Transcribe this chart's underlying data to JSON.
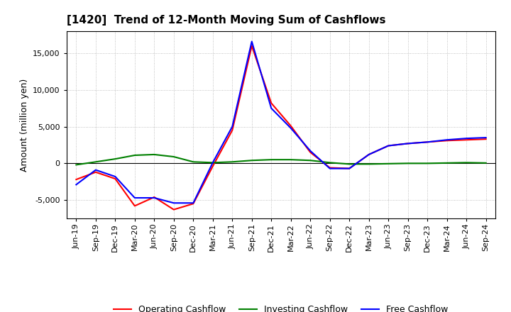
{
  "title": "[1420]  Trend of 12-Month Moving Sum of Cashflows",
  "ylabel": "Amount (million yen)",
  "ylim": [
    -7500,
    18000
  ],
  "yticks": [
    -5000,
    0,
    5000,
    10000,
    15000
  ],
  "background_color": "#ffffff",
  "plot_bg_color": "#ffffff",
  "grid_color": "#b0b0b0",
  "labels": [
    "Jun-19",
    "Sep-19",
    "Dec-19",
    "Mar-20",
    "Jun-20",
    "Sep-20",
    "Dec-20",
    "Mar-21",
    "Jun-21",
    "Sep-21",
    "Dec-21",
    "Mar-22",
    "Jun-22",
    "Sep-22",
    "Dec-22",
    "Mar-23",
    "Jun-23",
    "Sep-23",
    "Dec-23",
    "Mar-24",
    "Jun-24",
    "Sep-24"
  ],
  "operating": [
    -2200,
    -1200,
    -2100,
    -5800,
    -4600,
    -6300,
    -5500,
    -400,
    4500,
    16000,
    8200,
    5100,
    1500,
    -600,
    -700,
    1200,
    2400,
    2700,
    2900,
    3100,
    3200,
    3300
  ],
  "investing": [
    -200,
    200,
    600,
    1100,
    1200,
    900,
    200,
    100,
    200,
    400,
    500,
    500,
    400,
    100,
    -100,
    -100,
    -50,
    0,
    0,
    50,
    100,
    50
  ],
  "free": [
    -2900,
    -900,
    -1800,
    -4700,
    -4700,
    -5400,
    -5400,
    100,
    5000,
    16600,
    7500,
    4800,
    1700,
    -700,
    -700,
    1200,
    2400,
    2700,
    2900,
    3200,
    3400,
    3500
  ],
  "operating_color": "#ff0000",
  "investing_color": "#008000",
  "free_color": "#0000ff",
  "line_width": 1.5,
  "title_fontsize": 11,
  "ylabel_fontsize": 9,
  "tick_fontsize": 8,
  "legend_fontsize": 9
}
